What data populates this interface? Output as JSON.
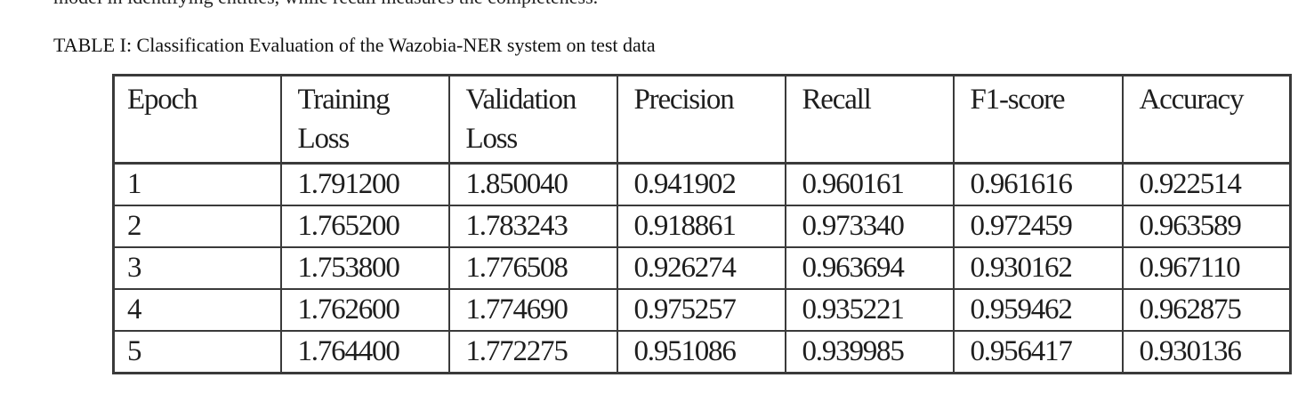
{
  "preceding_text": "model in identifying entities, while recall measures the completeness.",
  "caption": "TABLE I:  Classification Evaluation of the Wazobia-NER system on test data",
  "table": {
    "headers": [
      [
        "Epoch"
      ],
      [
        "Training",
        "Loss"
      ],
      [
        "Validation",
        "Loss"
      ],
      [
        "Precision"
      ],
      [
        "Recall"
      ],
      [
        "F1-score"
      ],
      [
        "Accuracy"
      ]
    ],
    "rows": [
      [
        "1",
        "1.791200",
        "1.850040",
        "0.941902",
        "0.960161",
        "0.961616",
        "0.922514"
      ],
      [
        "2",
        "1.765200",
        "1.783243",
        "0.918861",
        "0.973340",
        "0.972459",
        "0.963589"
      ],
      [
        "3",
        "1.753800",
        "1.776508",
        "0.926274",
        "0.963694",
        "0.930162",
        "0.967110"
      ],
      [
        "4",
        "1.762600",
        "1.774690",
        "0.975257",
        "0.935221",
        "0.959462",
        "0.962875"
      ],
      [
        "5",
        "1.764400",
        "1.772275",
        "0.951086",
        "0.939985",
        "0.956417",
        "0.930136"
      ]
    ]
  }
}
